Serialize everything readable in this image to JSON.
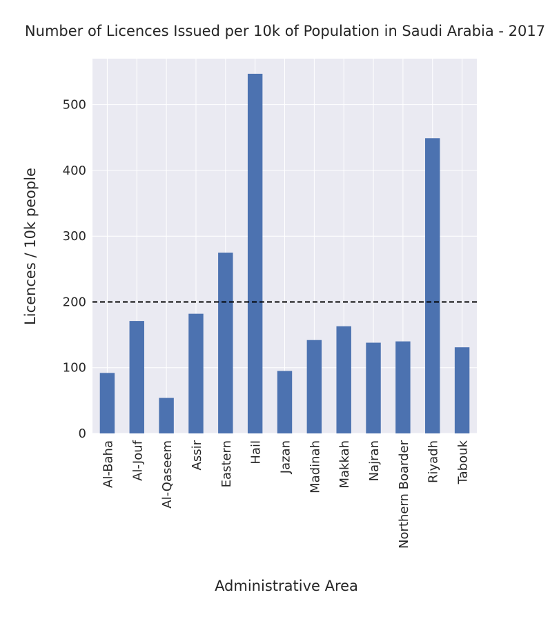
{
  "chart_data": {
    "type": "bar",
    "title": "Number of Licences Issued per 10k of Population in Saudi Arabia - 2017",
    "xlabel": "Administrative Area",
    "ylabel": "Licences / 10k people",
    "categories": [
      "Al-Baha",
      "Al-Jouf",
      "Al-Qaseem",
      "Assir",
      "Eastern",
      "Hail",
      "Jazan",
      "Madinah",
      "Makkah",
      "Najran",
      "Northern Boarder",
      "Riyadh",
      "Tabouk"
    ],
    "values": [
      92,
      171,
      54,
      182,
      275,
      547,
      95,
      142,
      163,
      138,
      140,
      449,
      131
    ],
    "ylim": [
      0,
      570
    ],
    "yticks": [
      0,
      100,
      200,
      300,
      400,
      500
    ],
    "reference_line": 200,
    "grid": true,
    "colors": {
      "bar": "#4c72b0",
      "background": "#eaeaf2",
      "grid": "#ffffff",
      "reference_line": "#000000"
    }
  }
}
